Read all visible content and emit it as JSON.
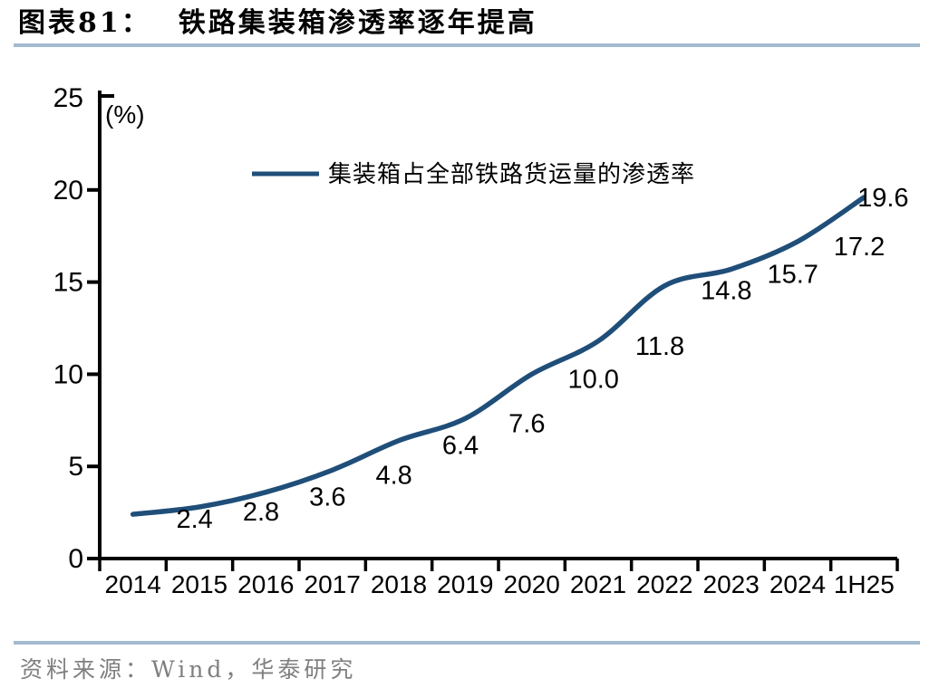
{
  "figure": {
    "label": "图表81：",
    "title": "铁路集装箱渗透率逐年提高"
  },
  "chart_data": {
    "type": "line",
    "title": "铁路集装箱渗透率逐年提高",
    "unit_label": "(%)",
    "categories": [
      "2014",
      "2015",
      "2016",
      "2017",
      "2018",
      "2019",
      "2020",
      "2021",
      "2022",
      "2023",
      "2024",
      "1H25"
    ],
    "series": [
      {
        "name": "集装箱占全部铁路货运量的渗透率",
        "values": [
          2.4,
          2.8,
          3.6,
          4.8,
          6.4,
          7.6,
          10.0,
          11.8,
          14.8,
          15.7,
          17.2,
          19.6
        ],
        "color": "#1F4E79"
      }
    ],
    "ylim": [
      0,
      25
    ],
    "yticks": [
      0,
      5,
      10,
      15,
      20,
      25
    ],
    "grid": false,
    "legend_position": "top-center",
    "data_labels": "one_decimal"
  },
  "source": {
    "text": "资料来源：Wind，华泰研究"
  },
  "colors": {
    "divider": "#A4BACF",
    "series_line": "#1F4E79",
    "axis": "#000000",
    "source_text": "#7F7F7F"
  }
}
